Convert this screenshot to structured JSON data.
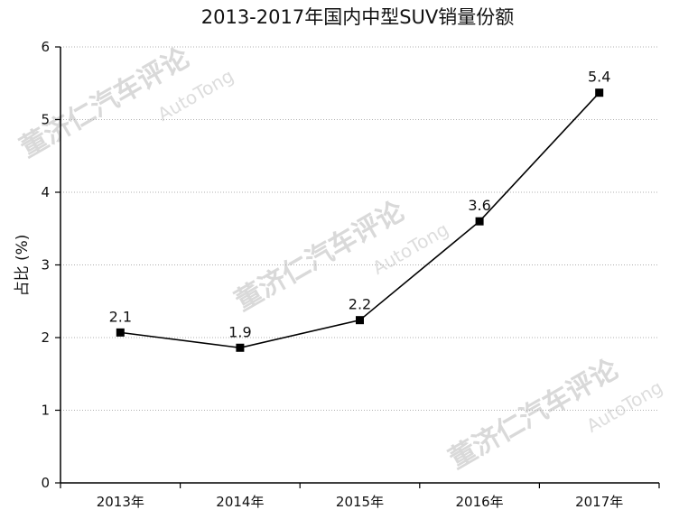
{
  "chart_data": {
    "type": "line",
    "title": "2013-2017年国内中型SUV销量份额",
    "xlabel": "",
    "ylabel": "占比 (%)",
    "categories": [
      "2013年",
      "2014年",
      "2015年",
      "2016年",
      "2017年"
    ],
    "series": [
      {
        "values": [
          2.07,
          1.86,
          2.24,
          3.6,
          5.37
        ],
        "labels": [
          "2.1",
          "1.9",
          "2.2",
          "3.6",
          "5.4"
        ]
      }
    ],
    "ylim": [
      0,
      6
    ],
    "yticks": [
      "0",
      "1",
      "2",
      "3",
      "4",
      "5",
      "6"
    ],
    "grid": "horizontal-dotted",
    "line_color": "#000000",
    "marker": "square"
  },
  "watermark": {
    "text": "董济仁汽车评论",
    "sub": "AutoTong"
  }
}
